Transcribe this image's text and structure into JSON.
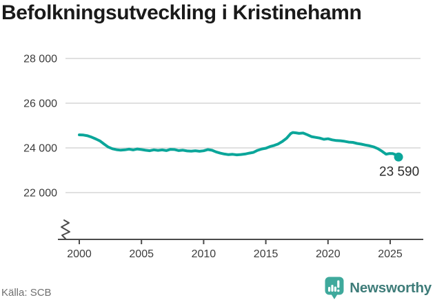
{
  "chart_data": {
    "type": "line",
    "title": "Befolkningsutveckling i Kristinehamn",
    "source": "Källa: SCB",
    "xlabel": "",
    "ylabel": "",
    "xlim": [
      2000,
      2025.75
    ],
    "ylim": [
      22000,
      28000
    ],
    "grid": true,
    "legend": false,
    "axis_break": true,
    "end_label": "23 590",
    "end_value": 23590,
    "xticks": [
      {
        "value": 2000,
        "label": "2000"
      },
      {
        "value": 2005,
        "label": "2005"
      },
      {
        "value": 2010,
        "label": "2010"
      },
      {
        "value": 2015,
        "label": "2015"
      },
      {
        "value": 2020,
        "label": "2020"
      },
      {
        "value": 2025,
        "label": "2025"
      }
    ],
    "yticks": [
      {
        "value": 28000,
        "label": "28 000"
      },
      {
        "value": 26000,
        "label": "26 000"
      },
      {
        "value": 24000,
        "label": "24 000"
      },
      {
        "value": 22000,
        "label": "22 000"
      }
    ],
    "series": [
      {
        "color": "#0ba69a",
        "points": [
          [
            2000.0,
            24585
          ],
          [
            2000.33,
            24575
          ],
          [
            2000.67,
            24540
          ],
          [
            2001.0,
            24480
          ],
          [
            2001.33,
            24400
          ],
          [
            2001.67,
            24310
          ],
          [
            2002.0,
            24170
          ],
          [
            2002.33,
            24040
          ],
          [
            2002.67,
            23960
          ],
          [
            2003.0,
            23920
          ],
          [
            2003.33,
            23900
          ],
          [
            2003.67,
            23915
          ],
          [
            2004.0,
            23945
          ],
          [
            2004.33,
            23910
          ],
          [
            2004.67,
            23950
          ],
          [
            2005.0,
            23925
          ],
          [
            2005.33,
            23895
          ],
          [
            2005.67,
            23875
          ],
          [
            2006.0,
            23915
          ],
          [
            2006.33,
            23890
          ],
          [
            2006.67,
            23910
          ],
          [
            2007.0,
            23880
          ],
          [
            2007.33,
            23935
          ],
          [
            2007.67,
            23925
          ],
          [
            2008.0,
            23880
          ],
          [
            2008.33,
            23900
          ],
          [
            2008.67,
            23865
          ],
          [
            2009.0,
            23855
          ],
          [
            2009.33,
            23875
          ],
          [
            2009.67,
            23850
          ],
          [
            2010.0,
            23870
          ],
          [
            2010.33,
            23925
          ],
          [
            2010.67,
            23895
          ],
          [
            2011.0,
            23820
          ],
          [
            2011.33,
            23765
          ],
          [
            2011.67,
            23725
          ],
          [
            2012.0,
            23700
          ],
          [
            2012.33,
            23715
          ],
          [
            2012.67,
            23690
          ],
          [
            2013.0,
            23705
          ],
          [
            2013.33,
            23725
          ],
          [
            2013.67,
            23765
          ],
          [
            2014.0,
            23800
          ],
          [
            2014.33,
            23890
          ],
          [
            2014.67,
            23950
          ],
          [
            2015.0,
            23985
          ],
          [
            2015.33,
            24060
          ],
          [
            2015.67,
            24110
          ],
          [
            2016.0,
            24180
          ],
          [
            2016.33,
            24290
          ],
          [
            2016.67,
            24430
          ],
          [
            2017.0,
            24640
          ],
          [
            2017.17,
            24690
          ],
          [
            2017.42,
            24675
          ],
          [
            2017.67,
            24650
          ],
          [
            2018.0,
            24665
          ],
          [
            2018.33,
            24590
          ],
          [
            2018.67,
            24505
          ],
          [
            2019.0,
            24470
          ],
          [
            2019.33,
            24440
          ],
          [
            2019.67,
            24385
          ],
          [
            2020.0,
            24410
          ],
          [
            2020.33,
            24360
          ],
          [
            2020.67,
            24330
          ],
          [
            2021.0,
            24320
          ],
          [
            2021.33,
            24295
          ],
          [
            2021.67,
            24260
          ],
          [
            2022.0,
            24245
          ],
          [
            2022.33,
            24200
          ],
          [
            2022.67,
            24170
          ],
          [
            2023.0,
            24130
          ],
          [
            2023.33,
            24095
          ],
          [
            2023.67,
            24045
          ],
          [
            2024.0,
            23965
          ],
          [
            2024.33,
            23855
          ],
          [
            2024.67,
            23720
          ],
          [
            2024.95,
            23750
          ],
          [
            2025.2,
            23745
          ],
          [
            2025.5,
            23685
          ],
          [
            2025.67,
            23590
          ]
        ]
      }
    ]
  },
  "footer": {
    "source": "Källa: SCB",
    "brand": "Newsworthy"
  },
  "colors": {
    "line": "#0ba69a",
    "grid": "#e0e0e0",
    "axis": "#4a4a4a",
    "tick_label": "#3c3c3c",
    "end_label": "#2b2b2b",
    "title": "#1a1a1a",
    "source": "#6f6f6f",
    "brand_icon": "#3fa99c",
    "brand_text": "#3e7c79"
  }
}
